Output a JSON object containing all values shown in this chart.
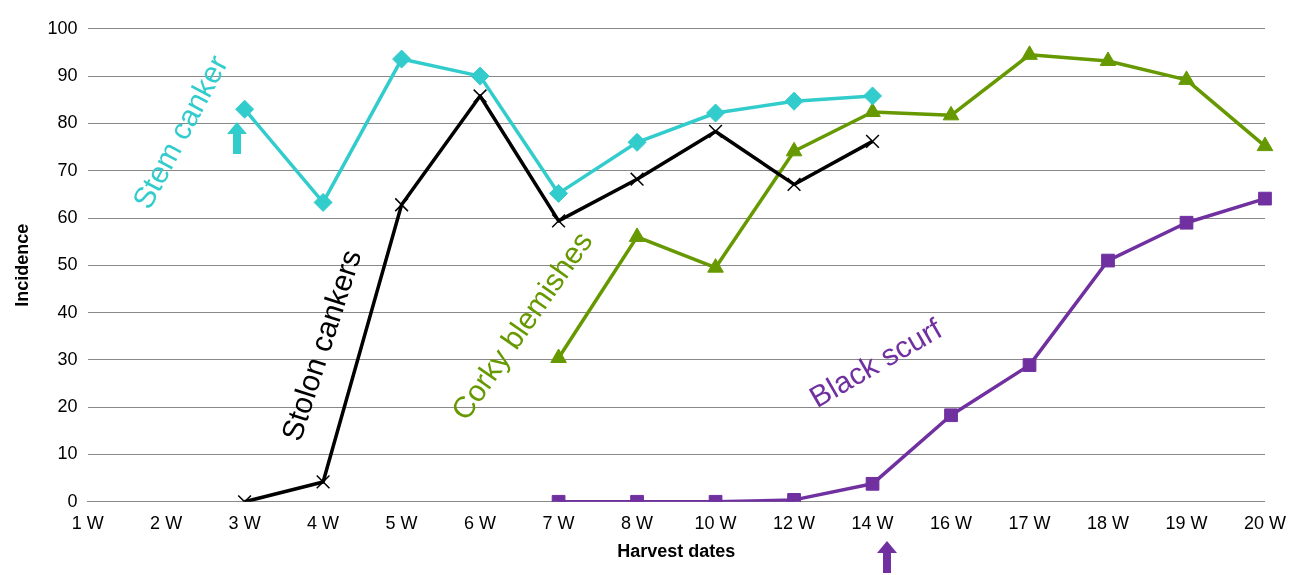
{
  "chart_data": {
    "type": "line",
    "xlabel": "Harvest dates",
    "ylabel": "Incidence",
    "categories": [
      "1 W",
      "2 W",
      "3 W",
      "4 W",
      "5 W",
      "6 W",
      "7 W",
      "8 W",
      "10 W",
      "12 W",
      "14 W",
      "16 W",
      "17 W",
      "18 W",
      "19 W",
      "20 W"
    ],
    "ylim": [
      0,
      100
    ],
    "yticks": [
      0,
      10,
      20,
      30,
      40,
      50,
      60,
      70,
      80,
      90,
      100
    ],
    "grid": "y",
    "line_style": "solid",
    "series": [
      {
        "name": "Stem canker",
        "color": "#33cccc",
        "marker": "diamond",
        "values": [
          null,
          null,
          83,
          63.3,
          93.6,
          90,
          65.2,
          76,
          82.2,
          84.7,
          85.8,
          null,
          null,
          null,
          null,
          null
        ]
      },
      {
        "name": "Stolon cankers",
        "color": "#000000",
        "marker": "cross",
        "values": [
          null,
          null,
          0,
          4.2,
          62.8,
          85.8,
          59.4,
          68.2,
          78.3,
          67.1,
          76.2,
          null,
          null,
          null,
          null,
          null
        ]
      },
      {
        "name": "Corky blemishes",
        "color": "#669900",
        "marker": "triangle",
        "values": [
          null,
          null,
          null,
          null,
          null,
          null,
          30.4,
          56,
          49.5,
          74.1,
          82.4,
          81.7,
          94.5,
          93.2,
          89.2,
          75.2
        ]
      },
      {
        "name": "Black scurf",
        "color": "#7030a0",
        "marker": "square",
        "values": [
          null,
          null,
          null,
          null,
          null,
          null,
          0,
          0,
          0,
          0.4,
          3.8,
          18.3,
          28.9,
          51,
          59,
          64.1
        ]
      }
    ]
  }
}
